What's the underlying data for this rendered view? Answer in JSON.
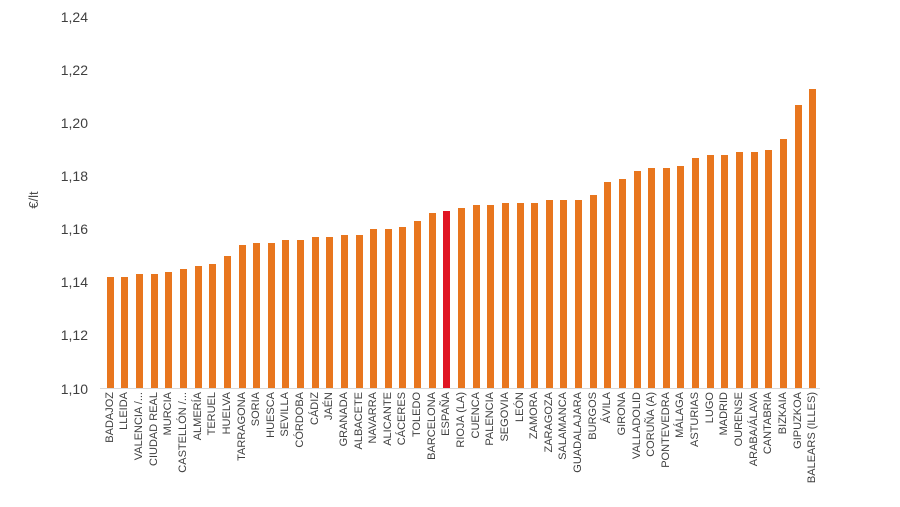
{
  "chart_data": {
    "type": "bar",
    "title": "",
    "xlabel": "",
    "ylabel": "€/lt",
    "ylim": [
      1.1,
      1.24
    ],
    "ytick_step": 0.02,
    "ytick_labels": [
      "1,10",
      "1,12",
      "1,14",
      "1,16",
      "1,18",
      "1,20",
      "1,22",
      "1,24"
    ],
    "grid": false,
    "legend_position": "none",
    "bar_color": "#E8761E",
    "highlight_color": "#E01523",
    "axis_line_color": "#D9D9D9",
    "text_color": "#3F3F3F",
    "highlight_category": "ESPAÑA",
    "categories": [
      "BADAJOZ",
      "LLEIDA",
      "VALENCIA /...",
      "CIUDAD REAL",
      "MURCIA",
      "CASTELLÓN /...",
      "ALMERÍA",
      "TERUEL",
      "HUELVA",
      "TARRAGONA",
      "SORIA",
      "HUESCA",
      "SEVILLA",
      "CÓRDOBA",
      "CÁDIZ",
      "JAÉN",
      "GRANADA",
      "ALBACETE",
      "NAVARRA",
      "ALICANTE",
      "CÁCERES",
      "TOLEDO",
      "BARCELONA",
      "ESPAÑA",
      "RIOJA (LA)",
      "CUENCA",
      "PALENCIA",
      "SEGOVIA",
      "LEÓN",
      "ZAMORA",
      "ZARAGOZA",
      "SALAMANCA",
      "GUADALAJARA",
      "BURGOS",
      "ÁVILA",
      "GIRONA",
      "VALLADOLID",
      "CORUÑA (A)",
      "PONTEVEDRA",
      "MÁLAGA",
      "ASTURIAS",
      "LUGO",
      "MADRID",
      "OURENSE",
      "ARABA/ÁLAVA",
      "CANTABRIA",
      "BIZKAIA",
      "GIPUZKOA",
      "BALEARS (ILLES)"
    ],
    "values": [
      1.142,
      1.142,
      1.143,
      1.143,
      1.144,
      1.145,
      1.146,
      1.147,
      1.15,
      1.154,
      1.155,
      1.155,
      1.156,
      1.156,
      1.157,
      1.157,
      1.158,
      1.158,
      1.16,
      1.16,
      1.161,
      1.163,
      1.166,
      1.167,
      1.168,
      1.169,
      1.169,
      1.17,
      1.17,
      1.17,
      1.171,
      1.171,
      1.171,
      1.173,
      1.178,
      1.179,
      1.182,
      1.183,
      1.183,
      1.184,
      1.187,
      1.188,
      1.188,
      1.189,
      1.189,
      1.19,
      1.194,
      1.207,
      1.213
    ]
  }
}
